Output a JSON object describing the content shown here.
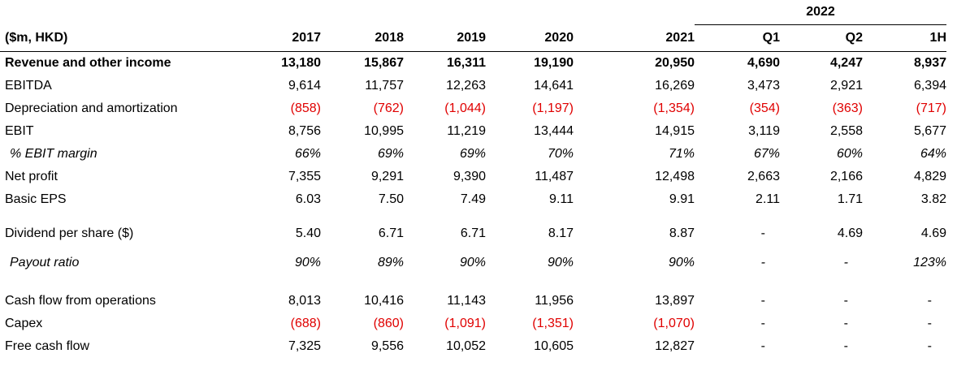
{
  "table": {
    "group_header": "2022",
    "columns": [
      "($m, HKD)",
      "2017",
      "2018",
      "2019",
      "2020",
      "2021",
      "Q1",
      "Q2",
      "1H"
    ],
    "rows": [
      [
        "Revenue and other income",
        "13,180",
        "15,867",
        "16,311",
        "19,190",
        "20,950",
        "4,690",
        "4,247",
        "8,937"
      ],
      [
        "EBITDA",
        "9,614",
        "11,757",
        "12,263",
        "14,641",
        "16,269",
        "3,473",
        "2,921",
        "6,394"
      ],
      [
        "Depreciation and amortization",
        "(858)",
        "(762)",
        "(1,044)",
        "(1,197)",
        "(1,354)",
        "(354)",
        "(363)",
        "(717)"
      ],
      [
        "EBIT",
        "8,756",
        "10,995",
        "11,219",
        "13,444",
        "14,915",
        "3,119",
        "2,558",
        "5,677"
      ],
      [
        "% EBIT margin",
        "66%",
        "69%",
        "69%",
        "70%",
        "71%",
        "67%",
        "60%",
        "64%"
      ],
      [
        "Net profit",
        "7,355",
        "9,291",
        "9,390",
        "11,487",
        "12,498",
        "2,663",
        "2,166",
        "4,829"
      ],
      [
        "Basic EPS",
        "6.03",
        "7.50",
        "7.49",
        "9.11",
        "9.91",
        "2.11",
        "1.71",
        "3.82"
      ],
      [
        "Dividend per share ($)",
        "5.40",
        "6.71",
        "6.71",
        "8.17",
        "8.87",
        "-",
        "4.69",
        "4.69"
      ],
      [
        "Payout ratio",
        "90%",
        "89%",
        "90%",
        "90%",
        "90%",
        "-",
        "-",
        "123%"
      ],
      [
        "Cash flow from operations",
        "8,013",
        "10,416",
        "11,143",
        "11,956",
        "13,897",
        "-",
        "-",
        "-"
      ],
      [
        "Capex",
        "(688)",
        "(860)",
        "(1,091)",
        "(1,351)",
        "(1,070)",
        "-",
        "-",
        "-"
      ],
      [
        "Free cash flow",
        "7,325",
        "9,556",
        "10,052",
        "10,605",
        "12,827",
        "-",
        "-",
        "-"
      ]
    ]
  }
}
